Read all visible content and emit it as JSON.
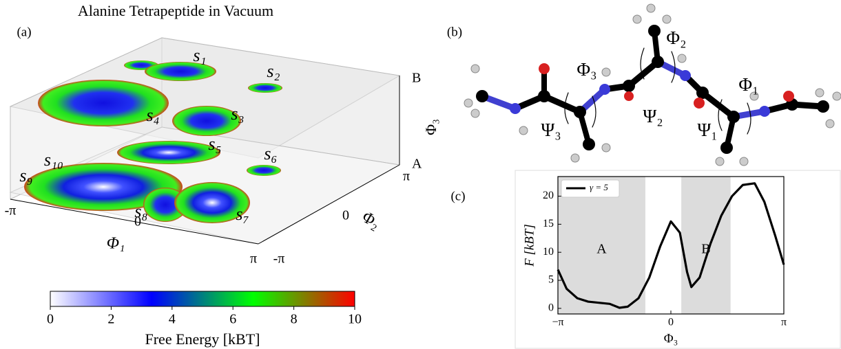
{
  "panel_a": {
    "title": "Alanine Tetrapeptide in Vacuum",
    "label": "(a)",
    "states": [
      "s₁",
      "s₂",
      "s₃",
      "s₄",
      "s₅",
      "s₆",
      "s₇",
      "s₈",
      "s₉",
      "s₁₀"
    ],
    "x_axis_label": "Φ₁",
    "y_axis_label": "Φ₂",
    "z_axis_label": "Φ₃",
    "x_ticks": [
      "-π",
      "0",
      "π"
    ],
    "y_ticks": [
      "-π",
      "0",
      "π"
    ],
    "z_ticks": [
      "A",
      "B"
    ]
  },
  "panel_b": {
    "label": "(b)",
    "angles": [
      "Φ₂",
      "Φ₃",
      "Ψ₂",
      "Φ₁",
      "Ψ₃",
      "Ψ₁"
    ]
  },
  "chart_data": [
    {
      "type": "colorbar",
      "label": "Free Energy [kBT]",
      "xlim": [
        0,
        10
      ],
      "xticks": [
        0,
        2,
        4,
        6,
        8,
        10
      ],
      "colors": [
        "#ffffff",
        "#0000ff",
        "#00ff00",
        "#ff0000"
      ]
    },
    {
      "type": "line",
      "label": "(c)",
      "x": [
        -3.1416,
        -2.9,
        -2.6,
        -2.3,
        -2.0,
        -1.7,
        -1.43,
        -1.2,
        -0.9,
        -0.6,
        -0.3,
        0,
        0.25,
        0.45,
        0.57,
        0.8,
        1.1,
        1.4,
        1.7,
        2.0,
        2.33,
        2.6,
        2.9,
        3.1416
      ],
      "series": [
        {
          "name": "γ = 5",
          "color": "#000000",
          "values": [
            6.9,
            3.5,
            1.8,
            1.2,
            1.0,
            0.8,
            0.1,
            0.3,
            1.8,
            5.5,
            11,
            15.5,
            13.5,
            6.5,
            3.8,
            5.5,
            11.5,
            16.5,
            20,
            22,
            22.3,
            19,
            13,
            7.8
          ]
        }
      ],
      "xlim": [
        -3.1416,
        3.1416
      ],
      "xticks": [
        {
          "value": -3.1416,
          "label": "−π"
        },
        0,
        {
          "value": 3.1416,
          "label": "π"
        }
      ],
      "ylim": [
        -1,
        23.5
      ],
      "yticks": [
        0,
        5,
        10,
        15,
        20
      ],
      "xlabel": "Φ₃",
      "ylabel": "F [kBT]",
      "regions": [
        {
          "label": "A",
          "range": [
            -3.1416,
            -0.71
          ]
        },
        {
          "label": "B",
          "range": [
            0.29,
            1.66
          ]
        }
      ],
      "legend": "upper left"
    }
  ]
}
